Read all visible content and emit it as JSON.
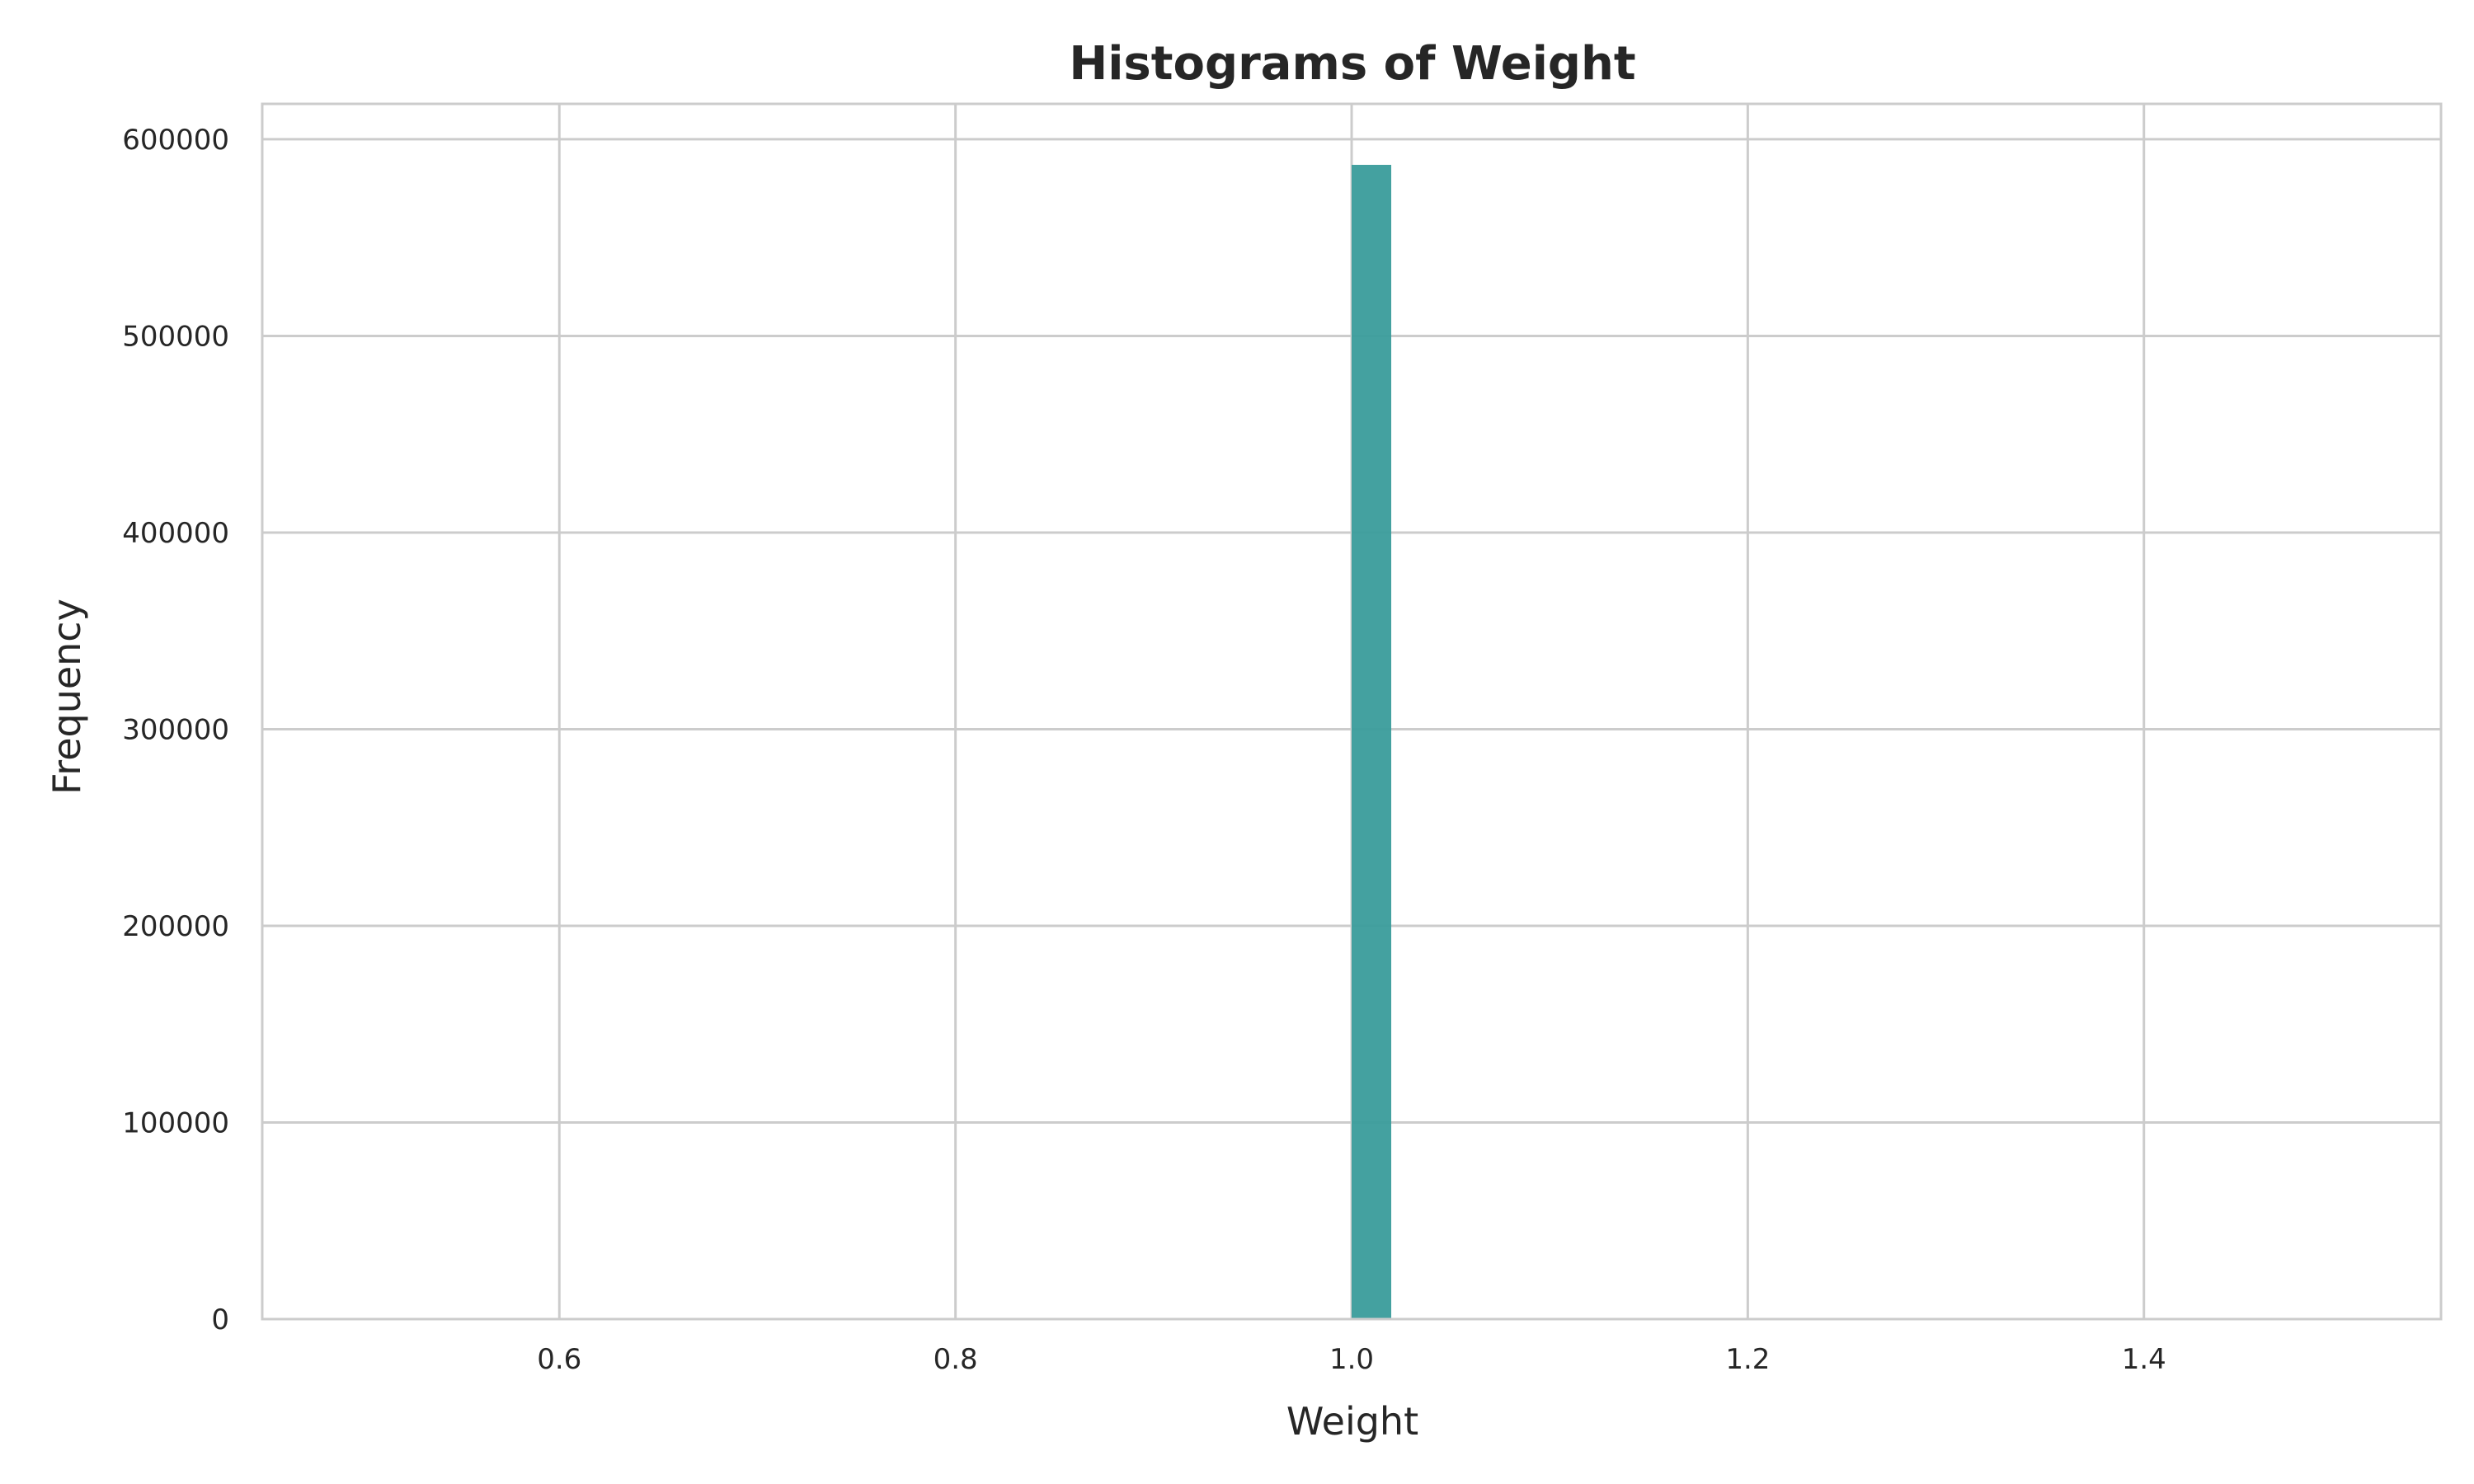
{
  "chart_data": {
    "type": "bar",
    "title": "Histograms of Weight",
    "xlabel": "Weight",
    "ylabel": "Frequency",
    "xlim": [
      0.45,
      1.55
    ],
    "ylim": [
      0,
      618000
    ],
    "x_ticks": [
      0.6,
      0.8,
      1.0,
      1.2,
      1.4
    ],
    "x_tick_labels": [
      "0.6",
      "0.8",
      "1.0",
      "1.2",
      "1.4"
    ],
    "y_ticks": [
      0,
      100000,
      200000,
      300000,
      400000,
      500000,
      600000
    ],
    "y_tick_labels": [
      "0",
      "100000",
      "200000",
      "300000",
      "400000",
      "500000",
      "600000"
    ],
    "bins": [
      {
        "x_start": 1.0,
        "x_end": 1.02,
        "count": 587000
      }
    ],
    "grid": true,
    "colors": {
      "bar": "#3a9c9b",
      "grid": "#cccccc",
      "frame": "#cccccc",
      "text": "#262626"
    }
  }
}
